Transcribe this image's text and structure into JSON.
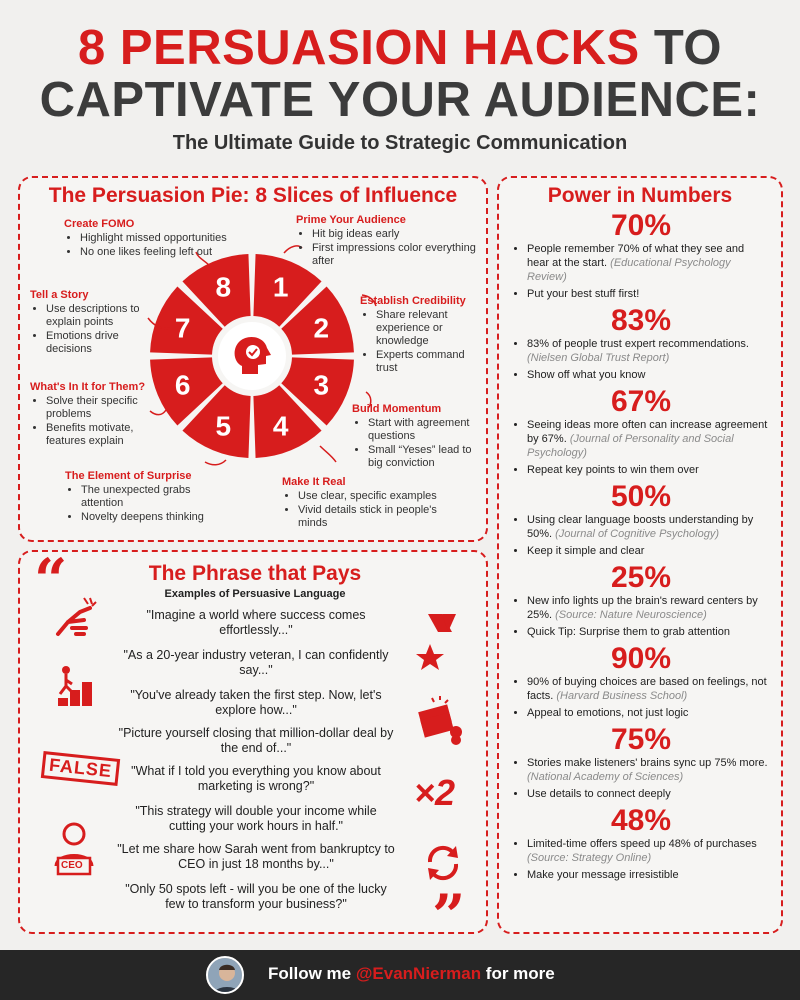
{
  "header": {
    "title_red": "8 PERSUASION HACKS",
    "title_rest": " TO",
    "title_line2": "CAPTIVATE YOUR AUDIENCE:",
    "subtitle": "The Ultimate Guide to Strategic Communication"
  },
  "pie": {
    "title": "The Persuasion Pie: 8 Slices of Influence",
    "slices": [
      {
        "num": "1",
        "heading": "Prime Your Audience",
        "points": [
          "Hit big ideas early",
          "First impressions color everything after"
        ]
      },
      {
        "num": "2",
        "heading": "Establish Credibility",
        "points": [
          "Share relevant experience or knowledge",
          "Experts command trust"
        ]
      },
      {
        "num": "3",
        "heading": "Build Momentum",
        "points": [
          "Start with agreement questions",
          "Small “Yeses” lead to big conviction"
        ]
      },
      {
        "num": "4",
        "heading": "Make It Real",
        "points": [
          "Use clear, specific examples",
          "Vivid details stick in people's minds"
        ]
      },
      {
        "num": "5",
        "heading": "The Element of Surprise",
        "points": [
          "The unexpected grabs attention",
          "Novelty deepens thinking"
        ]
      },
      {
        "num": "6",
        "heading": "What's In It for Them?",
        "points": [
          "Solve their specific problems",
          "Benefits motivate, features explain"
        ]
      },
      {
        "num": "7",
        "heading": "Tell a Story",
        "points": [
          "Use descriptions to explain points",
          "Emotions drive decisions"
        ]
      },
      {
        "num": "8",
        "heading": "Create FOMO",
        "points": [
          "Highlight missed opportunities",
          "No one likes feeling left out"
        ]
      }
    ]
  },
  "phrases": {
    "title": "The Phrase that Pays",
    "subtitle": "Examples of Persuasive Language",
    "false_badge": "FALSE",
    "ceo_badge": "CEO",
    "multiplier": "×2",
    "items": [
      "\"Imagine a world where success comes effortlessly...\"",
      "\"As a 20-year industry veteran, I can confidently say...\"",
      "\"You've already taken the first step. Now, let's explore how...\"",
      "\"Picture yourself closing that million-dollar deal by the end of...\"",
      "\"What if I told you everything you know about marketing is wrong?\"",
      "\"This strategy will double your income while cutting your work hours in half.\"",
      "\"Let me share how Sarah went from bankruptcy to CEO in just 18 months by...\"",
      "\"Only 50 spots left - will you be one of the lucky few to transform your business?\""
    ]
  },
  "numbers": {
    "title": "Power in Numbers",
    "stats": [
      {
        "pct": "70%",
        "fact": "People remember 70% of what they see and hear at the start.",
        "source": "(Educational Psychology Review)",
        "tip": "Put your best stuff first!"
      },
      {
        "pct": "83%",
        "fact": "83% of people trust expert recommendations.",
        "source": "(Nielsen Global Trust Report)",
        "tip": "Show off what you know"
      },
      {
        "pct": "67%",
        "fact": "Seeing ideas more often can increase agreement by 67%.",
        "source": "(Journal of Personality and Social Psychology)",
        "tip": "Repeat key points to win them over"
      },
      {
        "pct": "50%",
        "fact": "Using clear language boosts understanding by 50%.",
        "source": "(Journal of Cognitive Psychology)",
        "tip": "Keep it simple and clear"
      },
      {
        "pct": "25%",
        "fact": "New info lights up the brain's reward centers by 25%.",
        "source": "(Source: Nature Neuroscience)",
        "tip": "Quick Tip: Surprise them to grab attention"
      },
      {
        "pct": "90%",
        "fact": "90% of buying choices are based on feelings, not facts.",
        "source": "(Harvard Business School)",
        "tip": "Appeal to emotions, not just logic"
      },
      {
        "pct": "75%",
        "fact": "Stories make listeners' brains sync up 75% more.",
        "source": "(National Academy of Sciences)",
        "tip": "Use details to connect deeply"
      },
      {
        "pct": "48%",
        "fact": "Limited-time offers speed up 48% of purchases",
        "source": "(Source: Strategy Online)",
        "tip": "Make your message irresistible"
      }
    ]
  },
  "footer": {
    "prefix": "Follow me ",
    "handle": "@EvanNierman",
    "suffix": " for more"
  },
  "colors": {
    "accent": "#d71d1d",
    "dark": "#3c3c3c",
    "footer_bg": "#262626"
  }
}
